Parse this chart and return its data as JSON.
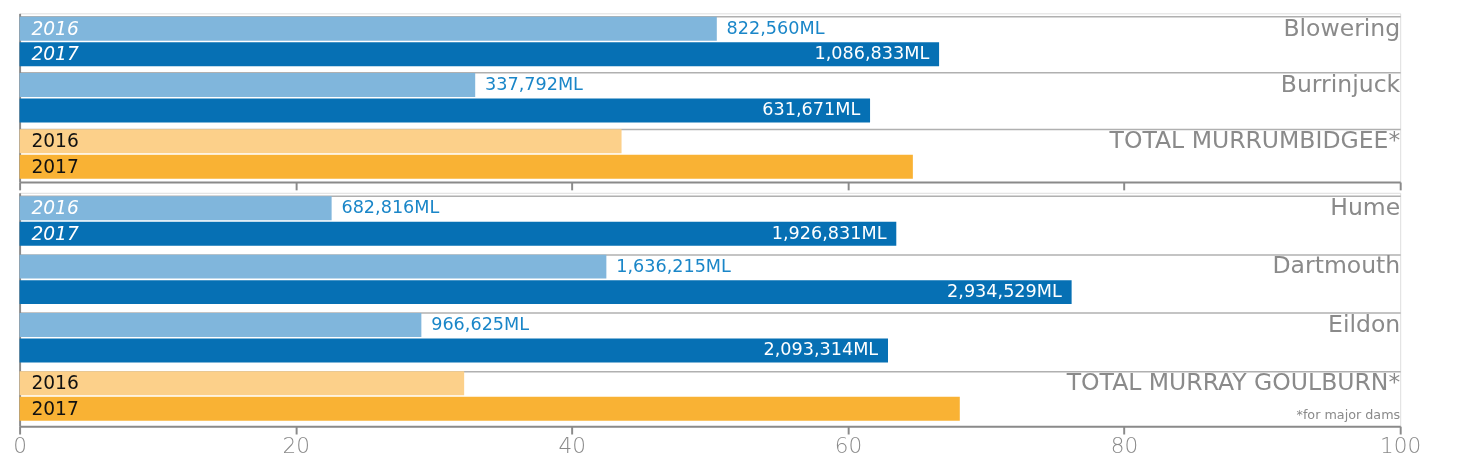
{
  "chart_data": [
    {
      "type": "bar",
      "orientation": "horizontal",
      "categories": [
        "Blowering",
        "Burrinjuck",
        "TOTAL MURRUMBIDGEE*"
      ],
      "xlim": [
        0,
        100
      ],
      "xticks": [
        0,
        20,
        40,
        60,
        80,
        100
      ],
      "tick_labels": "y",
      "grid": "y",
      "legend": false,
      "annotations": [
        {
          "text": "822,560ML",
          "x": 50.5,
          "y": "Blowering"
        },
        "1,086,833ML",
        {
          "text": "337,792ML",
          "x": 33.0,
          "y": "Burrinjuck"
        },
        "631,671ML"
      ],
      "series": [
        {
          "name": "2016",
          "colors": [
            "#80b6dc",
            "#80b6dc",
            "#fcd08a"
          ],
          "values": [
            50.5,
            33.0,
            43.6
          ]
        },
        {
          "name": "2017",
          "colors": [
            "#0670b4",
            "#0670b4",
            "#f9b234"
          ],
          "values": [
            66.6,
            61.6,
            64.7
          ]
        }
      ]
    },
    {
      "type": "bar",
      "orientation": "horizontal",
      "categories": [
        "Hume",
        "Dartmouth",
        "Eildon",
        "TOTAL MURRAY GOULBURN*"
      ],
      "xlim": [
        0,
        100
      ],
      "xticks": [
        0,
        20,
        40,
        60,
        80,
        100
      ],
      "grid": "y",
      "legend": false,
      "annotations": [
        {
          "text": "682,816ML",
          "x": 22.6,
          "y": "Hume"
        },
        "1,926,831ML",
        {
          "text": "1,636,215ML",
          "x": 42.5,
          "y": "Dartmouth"
        },
        "2,934,529ML",
        {
          "text": "966,625ML",
          "x": 29.1,
          "y": "Eildon"
        },
        "2,093,314ML",
        "*for major dams"
      ],
      "series": [
        {
          "name": "2016",
          "colors": [
            "#80b6dc",
            "#80b6dc",
            "#80b6dc",
            "#fcd08a"
          ],
          "values": [
            22.6,
            42.5,
            29.1,
            32.2
          ]
        },
        {
          "name": "2017",
          "colors": [
            "#0670b4",
            "#0670b4",
            "#0670b4",
            "#f9b234"
          ],
          "values": [
            63.5,
            76.2,
            62.9,
            68.1
          ]
        }
      ]
    }
  ]
}
